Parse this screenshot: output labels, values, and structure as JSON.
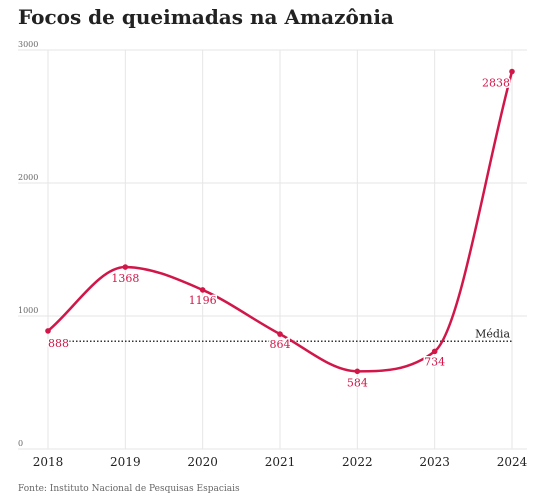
{
  "title": "Focos de queimadas na Amazônia",
  "source": "Fonte: Instituto Nacional de Pesquisas Espaciais",
  "chart_data": {
    "type": "line",
    "title": "Focos de queimadas na Amazônia",
    "categories": [
      "2018",
      "2019",
      "2020",
      "2021",
      "2022",
      "2023",
      "2024"
    ],
    "values": [
      888,
      1368,
      1196,
      864,
      584,
      734,
      2838
    ],
    "value_labels": [
      "888",
      "1368",
      "1196",
      "864",
      "584",
      "734",
      "2838"
    ],
    "yticks": [
      0,
      1000,
      2000,
      3000
    ],
    "ylim": [
      0,
      3000
    ],
    "reference_line": {
      "label": "Média",
      "value": 810
    },
    "grid": true,
    "xlabel": "",
    "ylabel": "",
    "colors": {
      "line": "#d11749",
      "grid": "#e6e6e6",
      "reference": "#333333",
      "text": "#222222"
    }
  }
}
